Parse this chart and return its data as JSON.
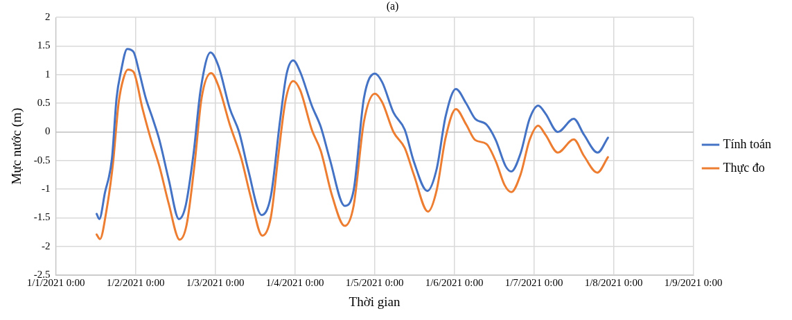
{
  "chart_data": {
    "type": "line",
    "title": "(a)",
    "xlabel": "Thời gian",
    "ylabel": "Mực nước (m)",
    "xlim": [
      "2021-01-01T00:00",
      "2021-01-09T00:00"
    ],
    "xticks": [
      {
        "value": "2021-01-01T00:00",
        "label": "1/1/2021 0:00"
      },
      {
        "value": "2021-01-02T00:00",
        "label": "1/2/2021 0:00"
      },
      {
        "value": "2021-01-03T00:00",
        "label": "1/3/2021 0:00"
      },
      {
        "value": "2021-01-04T00:00",
        "label": "1/4/2021 0:00"
      },
      {
        "value": "2021-01-05T00:00",
        "label": "1/5/2021 0:00"
      },
      {
        "value": "2021-01-06T00:00",
        "label": "1/6/2021 0:00"
      },
      {
        "value": "2021-01-07T00:00",
        "label": "1/7/2021 0:00"
      },
      {
        "value": "2021-01-08T00:00",
        "label": "1/8/2021 0:00"
      },
      {
        "value": "2021-01-09T00:00",
        "label": "1/9/2021 0:00"
      }
    ],
    "ylim": [
      -2.5,
      2
    ],
    "yticks": [
      -2.5,
      -2,
      -1.5,
      -1,
      -0.5,
      0,
      0.5,
      1,
      1.5,
      2
    ],
    "grid": true,
    "legend": "right",
    "marker": "none",
    "line_style": "solid",
    "series": [
      {
        "name": "Tính toán",
        "color": "#4472c4",
        "x": [
          "2021-01-01T12:18",
          "2021-01-01T13:06",
          "2021-01-01T14:48",
          "2021-01-01T16:54",
          "2021-01-01T18:18",
          "2021-01-01T19:36",
          "2021-01-01T21:30",
          "2021-01-01T23:24",
          "2021-01-02T01:06",
          "2021-01-02T03:06",
          "2021-01-02T05:12",
          "2021-01-02T07:12",
          "2021-01-02T10:00",
          "2021-01-02T13:06",
          "2021-01-02T15:06",
          "2021-01-02T17:30",
          "2021-01-02T19:36",
          "2021-01-02T22:36",
          "2021-01-03T01:00",
          "2021-01-03T04:24",
          "2021-01-03T07:12",
          "2021-01-03T09:54",
          "2021-01-03T14:00",
          "2021-01-03T16:48",
          "2021-01-03T19:30",
          "2021-01-03T21:30",
          "2021-01-03T23:30",
          "2021-01-04T01:36",
          "2021-01-04T05:06",
          "2021-01-04T07:48",
          "2021-01-04T10:30",
          "2021-01-04T15:00",
          "2021-01-04T17:42",
          "2021-01-04T20:48",
          "2021-01-05T00:06",
          "2021-01-05T02:18",
          "2021-01-05T05:42",
          "2021-01-05T09:06",
          "2021-01-05T11:48",
          "2021-01-05T15:54",
          "2021-01-05T18:42",
          "2021-01-05T21:24",
          "2021-01-06T00:30",
          "2021-01-06T03:36",
          "2021-01-06T06:18",
          "2021-01-06T09:42",
          "2021-01-06T12:30",
          "2021-01-06T15:30",
          "2021-01-06T17:12",
          "2021-01-06T20:00",
          "2021-01-06T22:42",
          "2021-01-07T01:18",
          "2021-01-07T03:30",
          "2021-01-07T07:12",
          "2021-01-07T12:00",
          "2021-01-07T15:06",
          "2021-01-07T19:12",
          "2021-01-07T22:18"
        ],
        "values": [
          -1.43,
          -1.52,
          -1.06,
          -0.47,
          0.59,
          1.05,
          1.45,
          1.4,
          1.05,
          0.59,
          0.23,
          -0.14,
          -0.83,
          -1.52,
          -1.29,
          -0.37,
          0.73,
          1.39,
          1.15,
          0.41,
          0,
          -0.65,
          -1.45,
          -1.11,
          0.18,
          1.01,
          1.25,
          1.05,
          0.46,
          0.09,
          -0.47,
          -1.29,
          -1.02,
          0.59,
          1.02,
          0.87,
          0.34,
          0.04,
          -0.51,
          -1.03,
          -0.65,
          0.27,
          0.75,
          0.5,
          0.23,
          0.13,
          -0.14,
          -0.6,
          -0.69,
          -0.37,
          0.23,
          0.46,
          0.32,
          0,
          0.23,
          -0.05,
          -0.36,
          -0.1
        ]
      },
      {
        "name": "Thực đo",
        "color": "#ed7d31",
        "x": [
          "2021-01-01T12:18",
          "2021-01-01T13:18",
          "2021-01-01T15:12",
          "2021-01-01T17:12",
          "2021-01-01T18:54",
          "2021-01-01T20:18",
          "2021-01-01T21:42",
          "2021-01-01T23:24",
          "2021-01-02T02:06",
          "2021-01-02T04:30",
          "2021-01-02T07:12",
          "2021-01-02T10:00",
          "2021-01-02T13:18",
          "2021-01-02T15:24",
          "2021-01-02T17:48",
          "2021-01-02T19:54",
          "2021-01-02T22:48",
          "2021-01-03T01:00",
          "2021-01-03T04:24",
          "2021-01-03T07:54",
          "2021-01-03T10:36",
          "2021-01-03T14:12",
          "2021-01-03T16:48",
          "2021-01-03T19:06",
          "2021-01-03T21:12",
          "2021-01-03T23:30",
          "2021-01-04T01:36",
          "2021-01-04T05:06",
          "2021-01-04T07:48",
          "2021-01-04T11:12",
          "2021-01-04T15:00",
          "2021-01-04T17:42",
          "2021-01-04T20:48",
          "2021-01-05T00:06",
          "2021-01-05T02:18",
          "2021-01-05T05:42",
          "2021-01-05T09:06",
          "2021-01-05T11:48",
          "2021-01-05T16:06",
          "2021-01-05T18:42",
          "2021-01-05T21:24",
          "2021-01-06T00:30",
          "2021-01-06T03:36",
          "2021-01-06T06:18",
          "2021-01-06T09:42",
          "2021-01-06T12:30",
          "2021-01-06T15:12",
          "2021-01-06T17:12",
          "2021-01-06T20:00",
          "2021-01-06T22:42",
          "2021-01-07T01:18",
          "2021-01-07T03:30",
          "2021-01-07T07:12",
          "2021-01-07T12:00",
          "2021-01-07T15:06",
          "2021-01-07T19:06",
          "2021-01-07T22:18"
        ],
        "values": [
          -1.79,
          -1.87,
          -1.39,
          -0.56,
          0.5,
          0.92,
          1.09,
          1.05,
          0.41,
          -0.1,
          -0.6,
          -1.25,
          -1.88,
          -1.62,
          -0.56,
          0.59,
          1.03,
          0.8,
          0.13,
          -0.47,
          -1.11,
          -1.81,
          -1.48,
          -0.37,
          0.55,
          0.89,
          0.73,
          0.04,
          -0.33,
          -1.11,
          -1.64,
          -1.29,
          0.18,
          0.67,
          0.52,
          0,
          -0.28,
          -0.74,
          -1.39,
          -1.02,
          -0.1,
          0.4,
          0.13,
          -0.14,
          -0.21,
          -0.51,
          -0.93,
          -1.05,
          -0.74,
          -0.14,
          0.11,
          -0.05,
          -0.36,
          -0.13,
          -0.42,
          -0.71,
          -0.44
        ]
      }
    ]
  }
}
